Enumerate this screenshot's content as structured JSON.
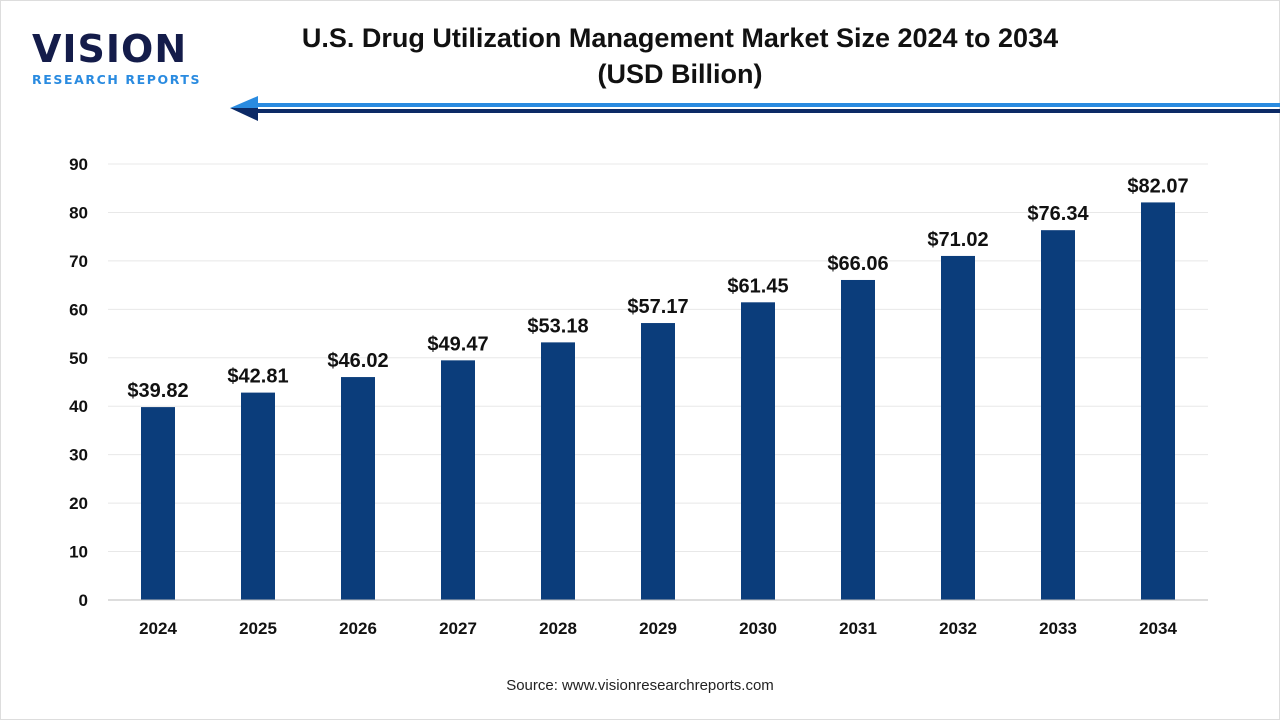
{
  "logo": {
    "main": "VISION",
    "sub": "RESEARCH REPORTS"
  },
  "colors": {
    "bar": "#0b3d7b",
    "arrow_light": "#2a8be0",
    "arrow_dark": "#0c2a66",
    "grid": "#e8e8e8"
  },
  "source": "Source: www.visionresearchreports.com",
  "chart_data": {
    "type": "bar",
    "title": "U.S. Drug Utilization Management Market Size 2024 to 2034",
    "subtitle": "(USD Billion)",
    "categories": [
      "2024",
      "2025",
      "2026",
      "2027",
      "2028",
      "2029",
      "2030",
      "2031",
      "2032",
      "2033",
      "2034"
    ],
    "values": [
      39.82,
      42.81,
      46.02,
      49.47,
      53.18,
      57.17,
      61.45,
      66.06,
      71.02,
      76.34,
      82.07
    ],
    "data_labels": [
      "$39.82",
      "$42.81",
      "$46.02",
      "$49.47",
      "$53.18",
      "$57.17",
      "$61.45",
      "$66.06",
      "$71.02",
      "$76.34",
      "$82.07"
    ],
    "ylim": [
      0,
      90
    ],
    "yticks": [
      0,
      10,
      20,
      30,
      40,
      50,
      60,
      70,
      80,
      90
    ],
    "grid": true,
    "legend": "none"
  }
}
